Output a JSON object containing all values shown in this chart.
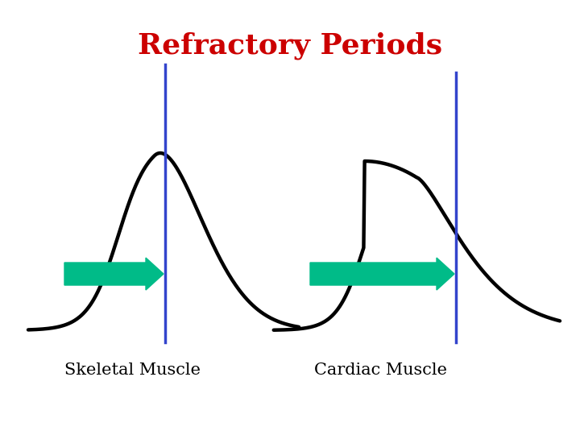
{
  "title": "Refractory Periods",
  "title_color": "#cc0000",
  "title_fontsize": 26,
  "title_fontweight": "bold",
  "bg_color": "#ffffff",
  "label_left": "Skeletal Muscle",
  "label_right": "Cardiac Muscle",
  "label_fontsize": 15,
  "curve_color": "#000000",
  "curve_lw": 3.2,
  "line_color": "#3344cc",
  "line_lw": 2.5,
  "arrow_color": "#00bb88"
}
